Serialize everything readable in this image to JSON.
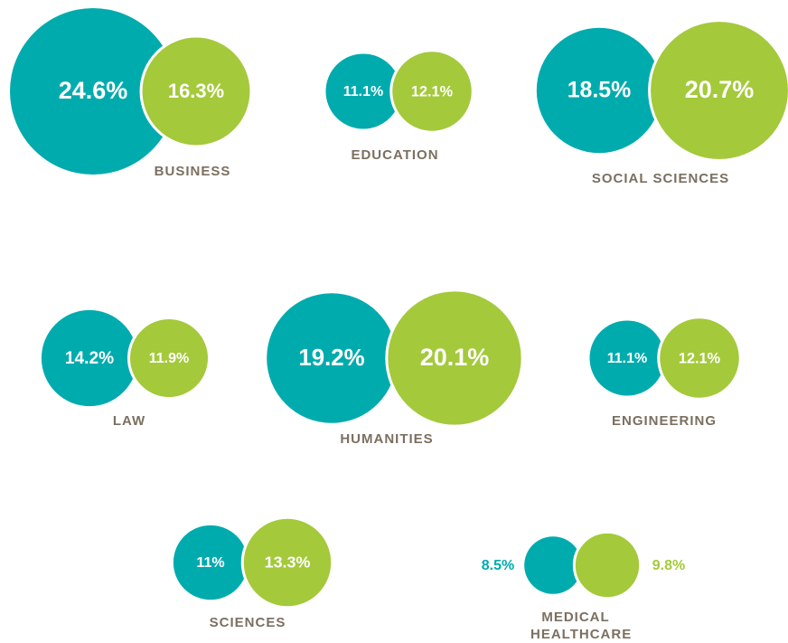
{
  "chart_data": {
    "type": "bubble",
    "categories": [
      "BUSINESS",
      "EDUCATION",
      "SOCIAL SCIENCES",
      "LAW",
      "HUMANITIES",
      "ENGINEERING",
      "SCIENCES",
      "MEDICAL HEALTHCARE"
    ],
    "series": [
      {
        "color": "#00abae",
        "values": [
          24.6,
          11.1,
          18.5,
          14.2,
          19.2,
          11.1,
          11,
          8.5
        ],
        "value_labels": [
          "24.6%",
          "11.1%",
          "18.5%",
          "14.2%",
          "19.2%",
          "11.1%",
          "11%",
          "8.5%"
        ]
      },
      {
        "color": "#a4c93b",
        "values": [
          16.3,
          12.1,
          20.7,
          11.9,
          20.1,
          12.1,
          13.3,
          9.8
        ],
        "value_labels": [
          "16.3%",
          "12.1%",
          "20.7%",
          "11.9%",
          "20.1%",
          "12.1%",
          "13.3%",
          "9.8%"
        ]
      }
    ]
  }
}
